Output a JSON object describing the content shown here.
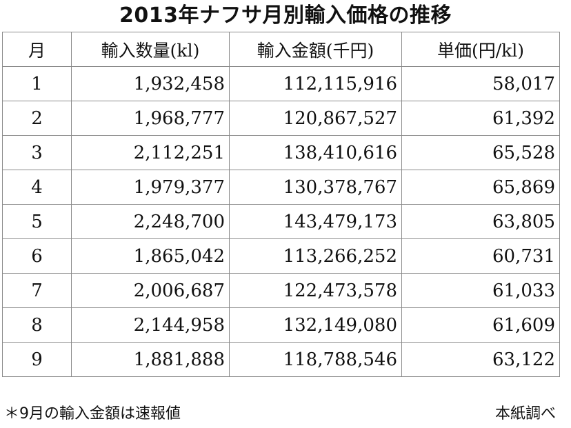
{
  "title": "2013年ナフサ月別輸入価格の推移",
  "table": {
    "headers": [
      "月",
      "輸入数量(kl)",
      "輸入金額(千円)",
      "単価(円/kl)"
    ],
    "rows": [
      [
        "1",
        "1,932,458",
        "112,115,916",
        "58,017"
      ],
      [
        "2",
        "1,968,777",
        "120,867,527",
        "61,392"
      ],
      [
        "3",
        "2,112,251",
        "138,410,616",
        "65,528"
      ],
      [
        "4",
        "1,979,377",
        "130,378,767",
        "65,869"
      ],
      [
        "5",
        "2,248,700",
        "143,479,173",
        "63,805"
      ],
      [
        "6",
        "1,865,042",
        "113,266,252",
        "60,731"
      ],
      [
        "7",
        "2,006,687",
        "122,473,578",
        "61,033"
      ],
      [
        "8",
        "2,144,958",
        "132,149,080",
        "61,609"
      ],
      [
        "9",
        "1,881,888",
        "118,788,546",
        "63,122"
      ]
    ]
  },
  "footnote": "＊9月の輸入金額は速報値",
  "source": "本紙調べ"
}
